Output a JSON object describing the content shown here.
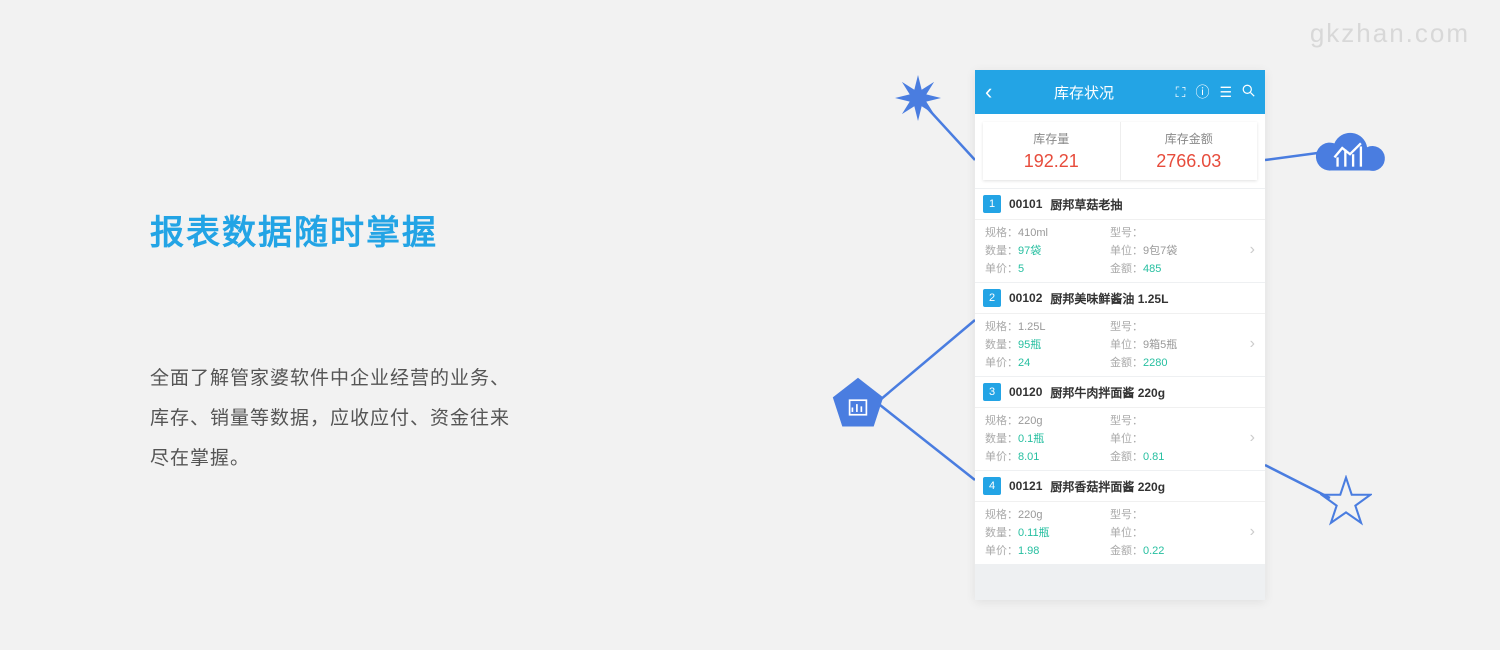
{
  "watermark": "gkzhan.com",
  "colors": {
    "accent": "#23a4e5",
    "summary_value": "#e74c3c",
    "list_value": "#26bfa0",
    "decoration": "#4a7de0",
    "background": "#f2f2f2"
  },
  "title": "报表数据随时掌握",
  "description_lines": [
    "全面了解管家婆软件中企业经营的业务、",
    "库存、销量等数据，应收应付、资金往来",
    "尽在掌握。"
  ],
  "phone": {
    "header_title": "库存状况",
    "summary": [
      {
        "label": "库存量",
        "value": "192.21"
      },
      {
        "label": "库存金额",
        "value": "2766.03"
      }
    ],
    "field_labels": {
      "spec": "规格：",
      "model": "型号：",
      "qty": "数量：",
      "unit": "单位：",
      "price": "单价：",
      "amount": "金额："
    },
    "items": [
      {
        "index": "1",
        "code": "00101",
        "name": "厨邦草菇老抽",
        "spec": "410ml",
        "model": "",
        "qty": "97袋",
        "unit": "9包7袋",
        "price": "5",
        "amount": "485"
      },
      {
        "index": "2",
        "code": "00102",
        "name": "厨邦美味鲜酱油 1.25L",
        "spec": "1.25L",
        "model": "",
        "qty": "95瓶",
        "unit": "9箱5瓶",
        "price": "24",
        "amount": "2280"
      },
      {
        "index": "3",
        "code": "00120",
        "name": "厨邦牛肉拌面酱 220g",
        "spec": "220g",
        "model": "",
        "qty": "0.1瓶",
        "unit": "",
        "price": "8.01",
        "amount": "0.81"
      },
      {
        "index": "4",
        "code": "00121",
        "name": "厨邦香菇拌面酱 220g",
        "spec": "220g",
        "model": "",
        "qty": "0.11瓶",
        "unit": "",
        "price": "1.98",
        "amount": "0.22"
      }
    ]
  }
}
